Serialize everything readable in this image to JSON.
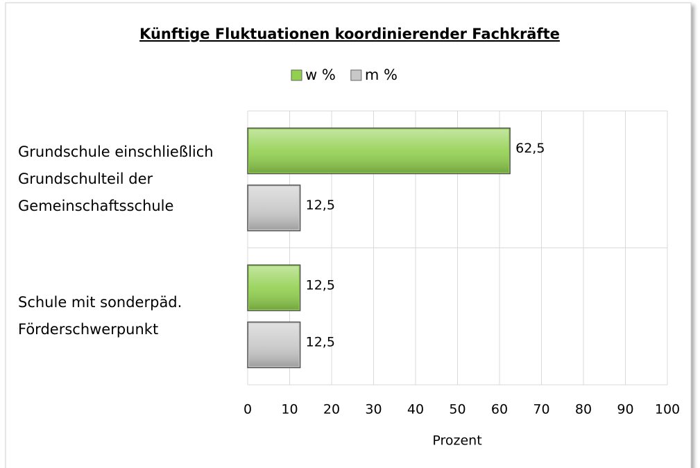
{
  "chart_data": {
    "type": "hbar",
    "title": "Künftige Fluktuationen koordinierender Fachkräfte",
    "categories": [
      "Grundschule einschließlich Grundschulteil der Gemeinschaftsschule",
      "Schule mit sonderpäd. Förderschwerpunkt"
    ],
    "series": [
      {
        "name": "w %",
        "color": "#92d050",
        "values": [
          62.5,
          12.5
        ],
        "value_labels": [
          "62,5",
          "12,5"
        ]
      },
      {
        "name": "m %",
        "color": "#c8c8c8",
        "values": [
          12.5,
          12.5
        ],
        "value_labels": [
          "12,5",
          "12,5"
        ]
      }
    ],
    "xlabel": "Prozent",
    "xlim": [
      0,
      100
    ],
    "xticks": [
      0,
      10,
      20,
      30,
      40,
      50,
      60,
      70,
      80,
      90,
      100
    ],
    "grid": true,
    "legend": "top"
  }
}
